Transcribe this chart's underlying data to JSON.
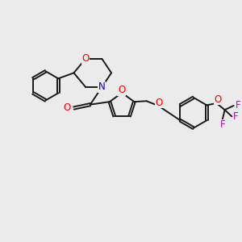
{
  "background_color": "#ebebeb",
  "bond_color": "#1a1a1a",
  "oxygen_color": "#ff0000",
  "nitrogen_color": "#0000cc",
  "fluorine_color": "#cc00cc",
  "line_width": 1.4,
  "figsize": [
    3.0,
    3.0
  ],
  "dpi": 100,
  "xlim": [
    0,
    10
  ],
  "ylim": [
    0,
    10
  ]
}
